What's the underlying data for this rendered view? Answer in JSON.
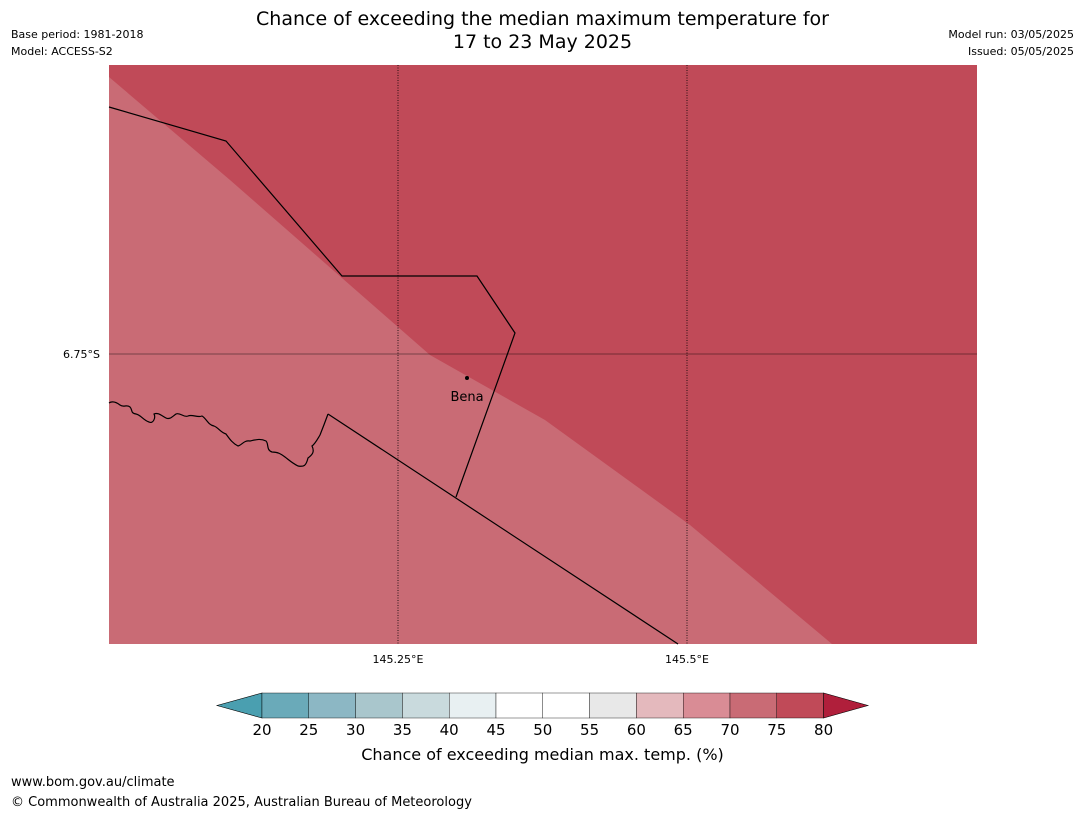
{
  "title_line1": "Chance of exceeding the median maximum temperature for",
  "title_line2": "17 to 23 May 2025",
  "base_period": "Base period: 1981-2018",
  "model": "Model: ACCESS-S2",
  "model_run": "Model run: 03/05/2025",
  "issued": "Issued: 05/05/2025",
  "map": {
    "lat_labels": [
      "6.75°S"
    ],
    "lon_labels": [
      "145.25°E",
      "145.5°E"
    ],
    "place": "Bena",
    "colors": {
      "zone_70_75": "#c96b75",
      "zone_75_80": "#c04a58"
    }
  },
  "legend": {
    "ticks": [
      "20",
      "25",
      "30",
      "35",
      "40",
      "45",
      "50",
      "55",
      "60",
      "65",
      "70",
      "75",
      "80"
    ],
    "colors": [
      "#4a9fb0",
      "#6aaab9",
      "#8cb7c4",
      "#a9c6cc",
      "#c9dadd",
      "#e8f0f2",
      "#ffffff",
      "#ffffff",
      "#e8e8e8",
      "#e4b9bd",
      "#d98c95",
      "#c96b75",
      "#c04a58",
      "#b01f3b"
    ],
    "label": "Chance of exceeding median max. temp. (%)"
  },
  "footer": {
    "url": "www.bom.gov.au/climate",
    "copyright": "© Commonwealth of Australia 2025, Australian Bureau of Meteorology"
  }
}
